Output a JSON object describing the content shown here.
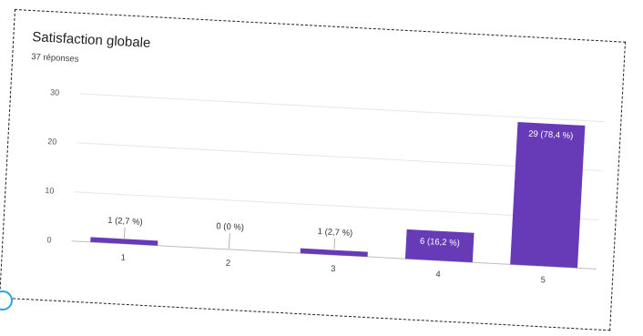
{
  "chart_data": {
    "type": "bar",
    "title": "Satisfaction globale",
    "subtitle": "37 réponses",
    "categories": [
      "1",
      "2",
      "3",
      "4",
      "5"
    ],
    "values": [
      1,
      0,
      1,
      6,
      29
    ],
    "data_labels": [
      "1 (2,7 %)",
      "0 (0 %)",
      "1 (2,7 %)",
      "6 (16,2 %)",
      "29 (78,4 %)"
    ],
    "yticks": [
      0,
      10,
      20,
      30
    ],
    "ylim": [
      0,
      30
    ],
    "grid": true,
    "legend": "none",
    "xlabel": "",
    "ylabel": ""
  },
  "colors": {
    "bar": "#673ab7",
    "grid": "#e6e6e6",
    "border": "#1f1f1f",
    "badge": "#29a3df"
  }
}
